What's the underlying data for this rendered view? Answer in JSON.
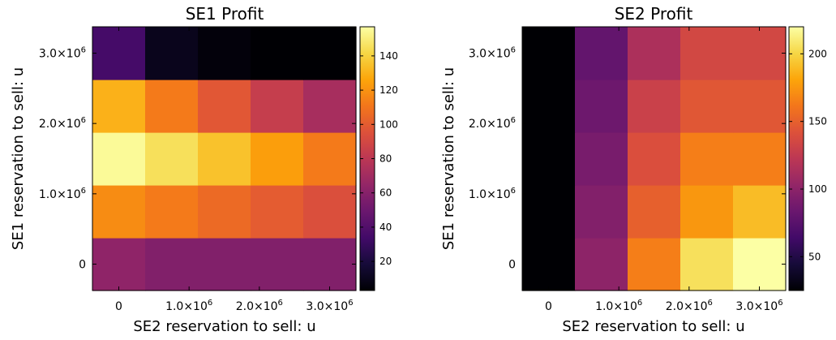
{
  "chart_data": [
    {
      "type": "heatmap",
      "title": "SE1 Profit",
      "xlabel": "SE2 reservation to sell: u",
      "ylabel": "SE1 reservation to sell: u",
      "x": [
        0,
        750000,
        1500000,
        2250000,
        3000000
      ],
      "y": [
        0,
        750000,
        1500000,
        2250000,
        3000000
      ],
      "xticks": [
        {
          "v": 0,
          "m": "0",
          "e": ""
        },
        {
          "v": 1000000,
          "m": "1.0×10",
          "e": "6"
        },
        {
          "v": 2000000,
          "m": "2.0×10",
          "e": "6"
        },
        {
          "v": 3000000,
          "m": "3.0×10",
          "e": "6"
        }
      ],
      "yticks": [
        {
          "v": 0,
          "m": "0",
          "e": ""
        },
        {
          "v": 1000000,
          "m": "1.0×10",
          "e": "6"
        },
        {
          "v": 2000000,
          "m": "2.0×10",
          "e": "6"
        },
        {
          "v": 3000000,
          "m": "3.0×10",
          "e": "6"
        }
      ],
      "z": [
        [
          63,
          58,
          58,
          58,
          58
        ],
        [
          118,
          112,
          106,
          100,
          94
        ],
        [
          155,
          145,
          135,
          124,
          112
        ],
        [
          130,
          112,
          98,
          84,
          72
        ],
        [
          35,
          10,
          5,
          3,
          3
        ]
      ],
      "colorbar": {
        "min": 3,
        "max": 157,
        "ticks": [
          20,
          40,
          60,
          80,
          100,
          120,
          140
        ]
      }
    },
    {
      "type": "heatmap",
      "title": "SE2 Profit",
      "xlabel": "SE2 reservation to sell: u",
      "ylabel": "SE1 reservation to sell: u",
      "x": [
        0,
        750000,
        1500000,
        2250000,
        3000000
      ],
      "y": [
        0,
        750000,
        1500000,
        2250000,
        3000000
      ],
      "xticks": [
        {
          "v": 0,
          "m": "0",
          "e": ""
        },
        {
          "v": 1000000,
          "m": "1.0×10",
          "e": "6"
        },
        {
          "v": 2000000,
          "m": "2.0×10",
          "e": "6"
        },
        {
          "v": 3000000,
          "m": "3.0×10",
          "e": "6"
        }
      ],
      "yticks": [
        {
          "v": 0,
          "m": "0",
          "e": ""
        },
        {
          "v": 1000000,
          "m": "1.0×10",
          "e": "6"
        },
        {
          "v": 2000000,
          "m": "2.0×10",
          "e": "6"
        },
        {
          "v": 3000000,
          "m": "3.0×10",
          "e": "6"
        }
      ],
      "z": [
        [
          25,
          100,
          165,
          205,
          220
        ],
        [
          25,
          95,
          150,
          175,
          190
        ],
        [
          25,
          90,
          140,
          165,
          165
        ],
        [
          25,
          85,
          130,
          145,
          145
        ],
        [
          25,
          80,
          115,
          135,
          135
        ]
      ],
      "colorbar": {
        "min": 25,
        "max": 220,
        "ticks": [
          50,
          100,
          150,
          200
        ]
      }
    }
  ]
}
